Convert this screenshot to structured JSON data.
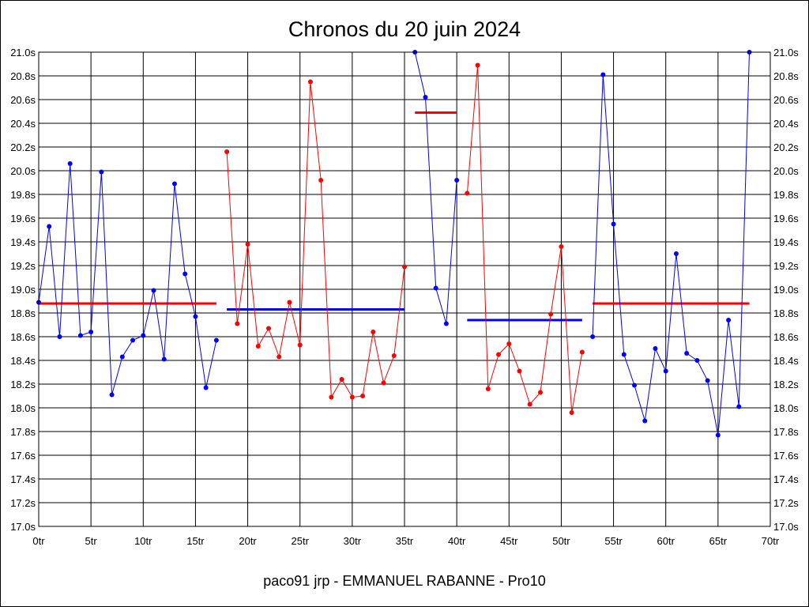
{
  "chart_data": {
    "type": "line",
    "title": "Chronos du 20 juin 2024",
    "footer": "paco91 jrp - EMMANUEL RABANNE - Pro10",
    "xlim": [
      0,
      70
    ],
    "ylim": [
      17.0,
      21.0
    ],
    "grid": true,
    "x_ticks": [
      0,
      5,
      10,
      15,
      20,
      25,
      30,
      35,
      40,
      45,
      50,
      55,
      60,
      65,
      70
    ],
    "x_tick_labels": [
      "0tr",
      "5tr",
      "10tr",
      "15tr",
      "20tr",
      "25tr",
      "30tr",
      "35tr",
      "40tr",
      "45tr",
      "50tr",
      "55tr",
      "60tr",
      "65tr",
      "70tr"
    ],
    "y_ticks": [
      17.0,
      17.2,
      17.4,
      17.6,
      17.8,
      18.0,
      18.2,
      18.4,
      18.6,
      18.8,
      19.0,
      19.2,
      19.4,
      19.6,
      19.8,
      20.0,
      20.2,
      20.4,
      20.6,
      20.8,
      21.0
    ],
    "y_tick_labels": [
      "17.0s",
      "17.2s",
      "17.4s",
      "17.6s",
      "17.8s",
      "18.0s",
      "18.2s",
      "18.4s",
      "18.6s",
      "18.8s",
      "19.0s",
      "19.2s",
      "19.4s",
      "19.6s",
      "19.8s",
      "20.0s",
      "20.2s",
      "20.4s",
      "20.6s",
      "20.8s",
      "21.0s"
    ],
    "series": [
      {
        "color": "#0000ff",
        "x": [
          0,
          1,
          2,
          3,
          4,
          5,
          6,
          7,
          8,
          9,
          10,
          11,
          12,
          13,
          14,
          15,
          16,
          17
        ],
        "values": [
          18.89,
          19.53,
          18.6,
          20.06,
          18.61,
          18.64,
          19.99,
          18.11,
          18.43,
          18.57,
          18.61,
          18.99,
          18.41,
          19.89,
          19.13,
          18.77,
          18.17,
          18.57
        ]
      },
      {
        "color": "#ff0000",
        "x": [
          18,
          19,
          20,
          21,
          22,
          23,
          24,
          25,
          26,
          27,
          28,
          29,
          30,
          31,
          32,
          33,
          34,
          35
        ],
        "values": [
          20.16,
          18.71,
          19.38,
          18.52,
          18.67,
          18.43,
          18.89,
          18.53,
          20.75,
          19.92,
          18.09,
          18.24,
          18.09,
          18.1,
          18.64,
          18.21,
          18.44,
          19.19
        ]
      },
      {
        "color": "#0000ff",
        "x": [
          36,
          37,
          38,
          39,
          40
        ],
        "values": [
          21.0,
          20.62,
          19.01,
          18.71,
          19.92
        ]
      },
      {
        "color": "#ff0000",
        "x": [
          41,
          42,
          43,
          44,
          45,
          46,
          47,
          48,
          49,
          50,
          51,
          52
        ],
        "values": [
          19.81,
          20.89,
          18.16,
          18.45,
          18.54,
          18.31,
          18.03,
          18.13,
          18.79,
          19.36,
          17.96,
          18.47
        ]
      },
      {
        "color": "#0000ff",
        "x": [
          53,
          54,
          55,
          56,
          57,
          58,
          59,
          60,
          61,
          62,
          63,
          64,
          65,
          66,
          67,
          68
        ],
        "values": [
          18.6,
          20.81,
          19.55,
          18.45,
          18.19,
          17.89,
          18.5,
          18.31,
          19.3,
          18.46,
          18.4,
          18.23,
          17.77,
          18.74,
          18.01,
          21.0
        ]
      }
    ],
    "averages": [
      {
        "color": "#ff0000",
        "x_start": 0,
        "x_end": 17,
        "value": 18.88
      },
      {
        "color": "#0000ff",
        "x_start": 18,
        "x_end": 35,
        "value": 18.83
      },
      {
        "color": "#ff0000",
        "x_start": 36,
        "x_end": 40,
        "value": 20.49
      },
      {
        "color": "#0000ff",
        "x_start": 41,
        "x_end": 52,
        "value": 18.74
      },
      {
        "color": "#ff0000",
        "x_start": 53,
        "x_end": 68,
        "value": 18.88
      }
    ]
  }
}
